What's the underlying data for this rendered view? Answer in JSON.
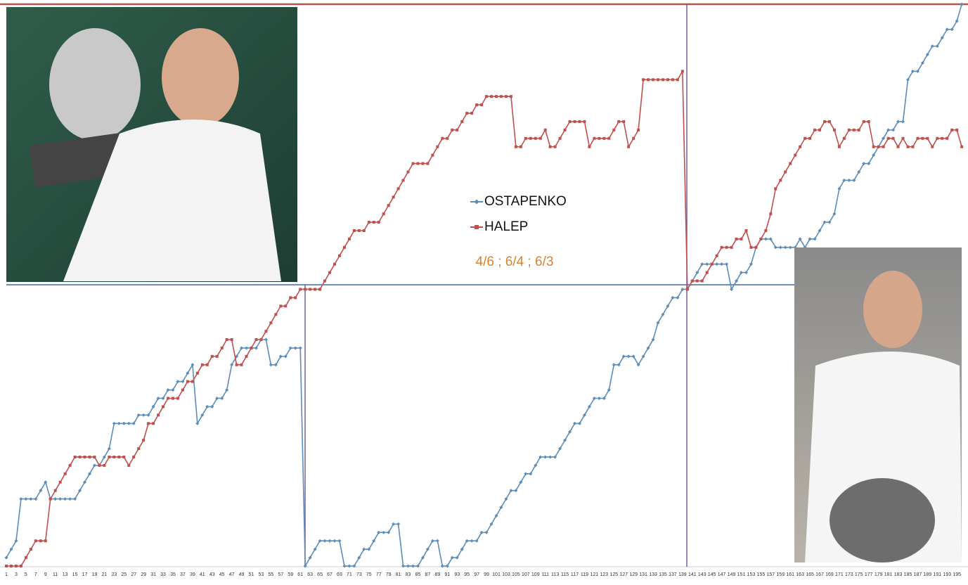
{
  "chart_data": {
    "type": "line",
    "annotation": "4/6 ; 6/4 ; 6/3",
    "categories": [
      1,
      null,
      3,
      null,
      5,
      null,
      7,
      null,
      9,
      null,
      11,
      null,
      13,
      null,
      15,
      null,
      17,
      null,
      19,
      null,
      21,
      null,
      23,
      null,
      25,
      null,
      27,
      null,
      29,
      null,
      31,
      null,
      33,
      null,
      35,
      null,
      37,
      null,
      39,
      null,
      41,
      null,
      43,
      null,
      45,
      null,
      47,
      null,
      49,
      null,
      51,
      null,
      53,
      null,
      55,
      null,
      57,
      null,
      59,
      null,
      61,
      null,
      63,
      null,
      65,
      null,
      67,
      null,
      69,
      null,
      71,
      null,
      73,
      null,
      75,
      null,
      77,
      null,
      79,
      null,
      81,
      null,
      83,
      null,
      85,
      null,
      87,
      null,
      89,
      null,
      91,
      null,
      93,
      null,
      95,
      null,
      97,
      null,
      99,
      null,
      101,
      null,
      103,
      null,
      105,
      null,
      107,
      null,
      109,
      null,
      111,
      null,
      113,
      null,
      115,
      null,
      117,
      null,
      119,
      null,
      121,
      null,
      123,
      null,
      125,
      null,
      127,
      null,
      129,
      null,
      131,
      null,
      133,
      null,
      135,
      null,
      137,
      null,
      139,
      null,
      141,
      null,
      143,
      null,
      145,
      null,
      147,
      null,
      149,
      null,
      151,
      null,
      153,
      null,
      155,
      null,
      157,
      null,
      159,
      null,
      161,
      null,
      163,
      null,
      165,
      null,
      167,
      null,
      169,
      null,
      171,
      null,
      173,
      null,
      175,
      null,
      177,
      null,
      179,
      null,
      181,
      null,
      183,
      null,
      185,
      null,
      187,
      null,
      189,
      null,
      191,
      null,
      193,
      null,
      195,
      null
    ],
    "ylim": [
      0,
      67
    ],
    "series": [
      {
        "name": "OSTAPENKO",
        "color": "#5b8db8",
        "marker": "diamond",
        "values": [
          1,
          2,
          3,
          8,
          8,
          8,
          8,
          9,
          10,
          8,
          8,
          8,
          8,
          8,
          8,
          9,
          10,
          11,
          12,
          12,
          13,
          14,
          17,
          17,
          17,
          17,
          17,
          18,
          18,
          18,
          19,
          20,
          20,
          21,
          21,
          22,
          22,
          23,
          24,
          17,
          18,
          19,
          19,
          20,
          20,
          21,
          24,
          25,
          26,
          26,
          26,
          26,
          27,
          27,
          24,
          24,
          25,
          25,
          26,
          26,
          26,
          0,
          1,
          2,
          3,
          3,
          3,
          3,
          3,
          0,
          0,
          0,
          1,
          2,
          2,
          3,
          4,
          4,
          4,
          5,
          5,
          0,
          0,
          0,
          0,
          1,
          2,
          3,
          3,
          0,
          0,
          1,
          1,
          2,
          3,
          3,
          3,
          4,
          4,
          5,
          6,
          7,
          8,
          9,
          9,
          10,
          11,
          11,
          12,
          13,
          13,
          13,
          13,
          14,
          15,
          16,
          17,
          17,
          18,
          19,
          20,
          20,
          20,
          21,
          24,
          24,
          25,
          25,
          25,
          24,
          25,
          26,
          27,
          29,
          30,
          31,
          32,
          32,
          33,
          33,
          34,
          35,
          36,
          36,
          36,
          36,
          36,
          36,
          33,
          34,
          35,
          35,
          36,
          38,
          39,
          39,
          39,
          38,
          38,
          38,
          38,
          38,
          39,
          38,
          39,
          39,
          40,
          41,
          41,
          42,
          45,
          46,
          46,
          46,
          47,
          48,
          48,
          49,
          50,
          51,
          52,
          52,
          53,
          53,
          58,
          59,
          59,
          60,
          61,
          62,
          62,
          63,
          64,
          64,
          65,
          67
        ]
      },
      {
        "name": "HALEP",
        "color": "#c0504d",
        "marker": "square",
        "values": [
          0,
          0,
          0,
          0,
          1,
          2,
          3,
          3,
          3,
          8,
          9,
          10,
          11,
          12,
          13,
          13,
          13,
          13,
          13,
          12,
          12,
          13,
          13,
          13,
          13,
          12,
          13,
          14,
          15,
          17,
          17,
          18,
          19,
          20,
          20,
          20,
          21,
          22,
          22,
          23,
          24,
          24,
          25,
          25,
          26,
          27,
          27,
          24,
          24,
          25,
          26,
          27,
          27,
          28,
          29,
          30,
          31,
          31,
          32,
          32,
          33,
          33,
          33,
          33,
          33,
          34,
          35,
          36,
          37,
          38,
          39,
          40,
          40,
          40,
          41,
          41,
          41,
          42,
          43,
          44,
          45,
          46,
          47,
          48,
          48,
          48,
          48,
          49,
          50,
          51,
          51,
          52,
          52,
          53,
          54,
          54,
          55,
          55,
          56,
          56,
          56,
          56,
          56,
          56,
          50,
          50,
          51,
          51,
          51,
          51,
          52,
          50,
          50,
          51,
          52,
          53,
          53,
          53,
          53,
          50,
          51,
          51,
          51,
          51,
          52,
          53,
          53,
          50,
          51,
          52,
          58,
          58,
          58,
          58,
          58,
          58,
          58,
          58,
          59,
          33,
          34,
          34,
          34,
          35,
          36,
          37,
          38,
          38,
          38,
          39,
          39,
          40,
          38,
          38,
          39,
          40,
          42,
          45,
          46,
          47,
          48,
          49,
          50,
          51,
          51,
          52,
          52,
          53,
          53,
          52,
          50,
          51,
          52,
          52,
          52,
          53,
          53,
          50,
          50,
          50,
          51,
          51,
          50,
          51,
          50,
          50,
          51,
          51,
          51,
          50,
          51,
          51,
          51,
          52,
          52,
          50
        ]
      }
    ]
  }
}
